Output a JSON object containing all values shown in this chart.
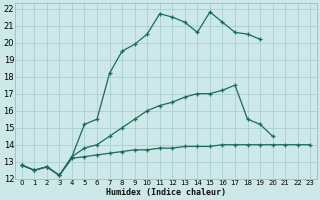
{
  "xlabel": "Humidex (Indice chaleur)",
  "bg_color": "#cce8e8",
  "grid_color": "#aad0d0",
  "line_color": "#1a6b5a",
  "xlim": [
    -0.5,
    23.5
  ],
  "ylim": [
    12,
    22.3
  ],
  "yticks": [
    12,
    13,
    14,
    15,
    16,
    17,
    18,
    19,
    20,
    21,
    22
  ],
  "xticks": [
    0,
    1,
    2,
    3,
    4,
    5,
    6,
    7,
    8,
    9,
    10,
    11,
    12,
    13,
    14,
    15,
    16,
    17,
    18,
    19,
    20,
    21,
    22,
    23
  ],
  "series": [
    {
      "x": [
        0,
        1,
        2,
        3,
        4,
        5,
        6,
        7,
        8,
        9,
        10,
        11,
        12,
        13,
        14,
        15,
        16,
        17,
        18,
        19
      ],
      "y": [
        12.8,
        12.5,
        12.7,
        12.2,
        13.3,
        15.2,
        15.5,
        18.2,
        19.5,
        19.9,
        20.5,
        21.7,
        21.5,
        21.2,
        20.6,
        21.8,
        21.2,
        20.6,
        20.5,
        20.2
      ]
    },
    {
      "x": [
        0,
        1,
        2,
        3,
        4,
        5,
        6,
        7,
        8,
        9,
        10,
        11,
        12,
        13,
        14,
        15,
        16,
        17,
        18,
        19,
        20
      ],
      "y": [
        12.8,
        12.5,
        12.7,
        12.2,
        13.3,
        13.8,
        14.0,
        14.5,
        15.0,
        15.5,
        16.0,
        16.3,
        16.5,
        16.8,
        17.0,
        17.0,
        17.2,
        17.5,
        15.5,
        15.2,
        14.5
      ]
    },
    {
      "x": [
        0,
        1,
        2,
        3,
        4,
        5,
        6,
        7,
        8,
        9,
        10,
        11,
        12,
        13,
        14,
        15,
        16,
        17,
        18,
        19,
        20,
        21,
        22,
        23
      ],
      "y": [
        12.8,
        12.5,
        12.7,
        12.2,
        13.2,
        13.3,
        13.4,
        13.5,
        13.6,
        13.7,
        13.7,
        13.8,
        13.8,
        13.9,
        13.9,
        13.9,
        14.0,
        14.0,
        14.0,
        14.0,
        14.0,
        14.0,
        14.0,
        14.0
      ]
    }
  ]
}
